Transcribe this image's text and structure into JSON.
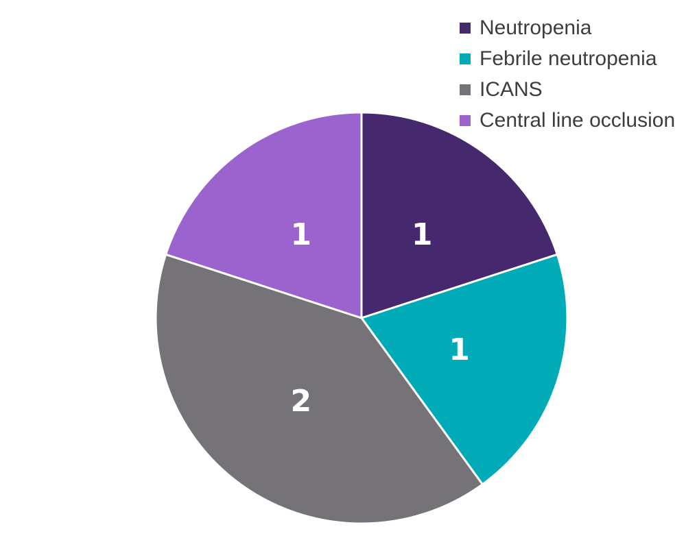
{
  "chart_data": {
    "type": "pie",
    "title": "",
    "categories": [
      "Neutropenia",
      "Febrile neutropenia",
      "ICANS",
      "Central line occlusion"
    ],
    "values": [
      1,
      1,
      2,
      1
    ],
    "data_labels": [
      "1",
      "1",
      "2",
      "1"
    ],
    "slice_colors": [
      "#46286e",
      "#00aab7",
      "#757377",
      "#9a63cd"
    ],
    "start_angle": "12-oclock",
    "direction": "clockwise",
    "legend_position": "top-right",
    "legend_text_color": "#3d3d3d",
    "data_label_color": "#ffffff",
    "slice_separator_color": "#ffffff",
    "background_color": "#ffffff"
  }
}
